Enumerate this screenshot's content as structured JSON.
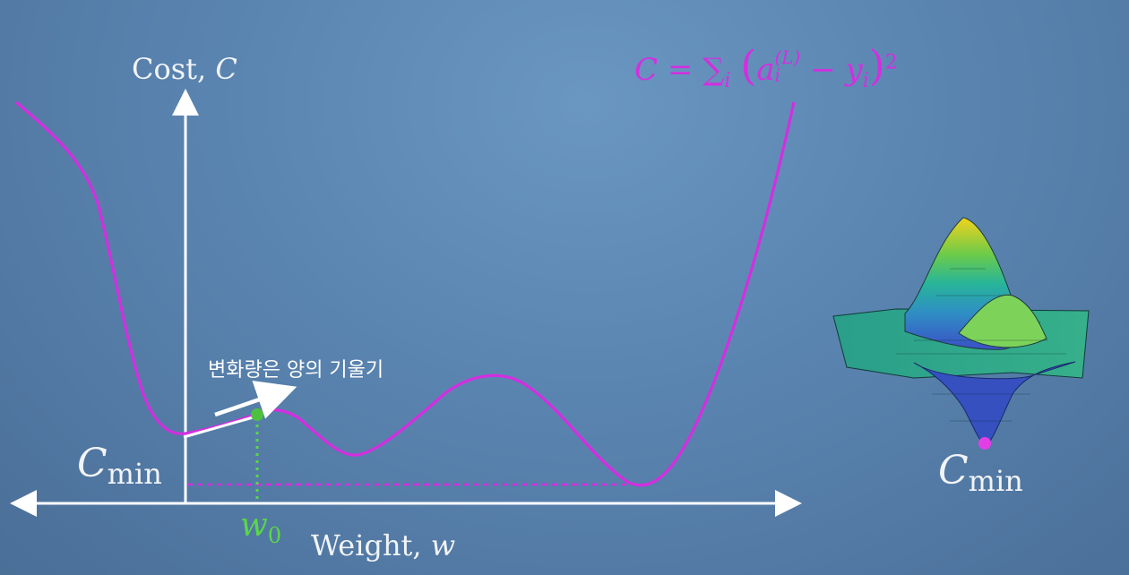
{
  "y_axis": {
    "label": "Cost,",
    "var": "C"
  },
  "x_axis": {
    "label": "Weight,",
    "var": "w"
  },
  "formula": {
    "lhs": "C =",
    "sum": "∑",
    "sub": "i",
    "a": "a",
    "a_sup": "(L)",
    "a_sub": "i",
    "minus": "−",
    "y": "y",
    "y_sub": "i",
    "power": "2"
  },
  "cmin_left": {
    "c": "C",
    "sub": "min"
  },
  "cmin_right": {
    "c": "C",
    "sub": "min"
  },
  "w0": {
    "w": "w",
    "sub": "0"
  },
  "annotation": "변화량은 양의 기울기",
  "colors": {
    "curve": "#d42ee0",
    "point": "#4ec040",
    "guide": "#5bd64a",
    "axes": "#ffffff"
  }
}
